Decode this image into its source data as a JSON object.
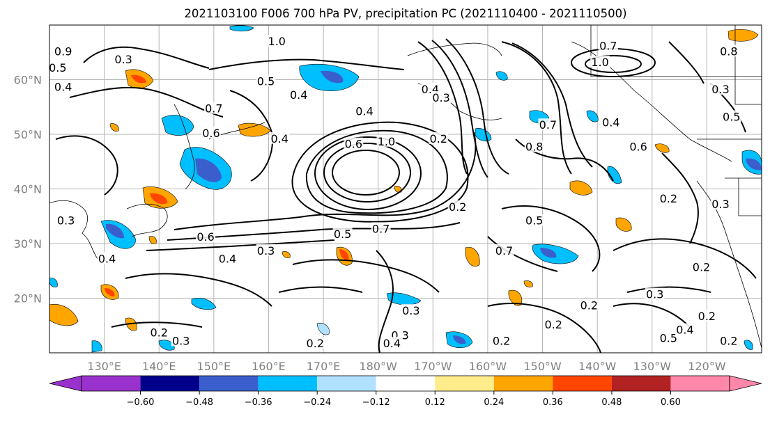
{
  "title": "2021103100 F006 700 hPa PV, precipitation PC (2021110400 - 2021110500)",
  "map": {
    "lat_ticks": [
      {
        "lat": 60,
        "label": "60°N"
      },
      {
        "lat": 50,
        "label": "50°N"
      },
      {
        "lat": 40,
        "label": "40°N"
      },
      {
        "lat": 30,
        "label": "30°N"
      },
      {
        "lat": 20,
        "label": "20°N"
      }
    ],
    "lon_ticks": [
      {
        "lon": 130,
        "label": "130°E"
      },
      {
        "lon": 140,
        "label": "140°E"
      },
      {
        "lon": 150,
        "label": "150°E"
      },
      {
        "lon": 160,
        "label": "160°E"
      },
      {
        "lon": 170,
        "label": "170°E"
      },
      {
        "lon": 180,
        "label": "180°W"
      },
      {
        "lon": 190,
        "label": "170°W"
      },
      {
        "lon": 200,
        "label": "160°W"
      },
      {
        "lon": 210,
        "label": "150°W"
      },
      {
        "lon": 220,
        "label": "140°W"
      },
      {
        "lon": 230,
        "label": "130°W"
      },
      {
        "lon": 240,
        "label": "120°W"
      }
    ],
    "lon_range": [
      120,
      250
    ],
    "lat_range": [
      10,
      70
    ],
    "grid": true,
    "tick_color": "#808080",
    "contour_labels": [
      {
        "text": "1.0",
        "lon": 161.5,
        "lat": 66.8
      },
      {
        "text": "0.3",
        "lon": 133.5,
        "lat": 63.5
      },
      {
        "text": "0.9",
        "lon": 122.5,
        "lat": 65.0
      },
      {
        "text": "0.5",
        "lon": 121.5,
        "lat": 62.0
      },
      {
        "text": "0.4",
        "lon": 122.5,
        "lat": 58.5
      },
      {
        "text": "0.7",
        "lon": 150.0,
        "lat": 54.5
      },
      {
        "text": "0.6",
        "lon": 149.5,
        "lat": 50.0
      },
      {
        "text": "0.5",
        "lon": 159.5,
        "lat": 59.5
      },
      {
        "text": "0.4",
        "lon": 165.5,
        "lat": 57.0
      },
      {
        "text": "0.4",
        "lon": 162.0,
        "lat": 49.0
      },
      {
        "text": "0.4",
        "lon": 177.5,
        "lat": 54.0
      },
      {
        "text": "1.0",
        "lon": 181.5,
        "lat": 48.5
      },
      {
        "text": "0.6",
        "lon": 175.5,
        "lat": 48.0
      },
      {
        "text": "0.7",
        "lon": 180.5,
        "lat": 32.5
      },
      {
        "text": "0.5",
        "lon": 173.5,
        "lat": 31.5
      },
      {
        "text": "0.3",
        "lon": 159.5,
        "lat": 28.5
      },
      {
        "text": "0.4",
        "lon": 152.5,
        "lat": 27.0
      },
      {
        "text": "0.6",
        "lon": 148.5,
        "lat": 31.0
      },
      {
        "text": "0.4",
        "lon": 130.5,
        "lat": 27.0
      },
      {
        "text": "0.3",
        "lon": 123.0,
        "lat": 34.0
      },
      {
        "text": "0.3",
        "lon": 186.0,
        "lat": 17.5
      },
      {
        "text": "0.3",
        "lon": 184.0,
        "lat": 13.0
      },
      {
        "text": "0.4",
        "lon": 182.5,
        "lat": 11.5
      },
      {
        "text": "0.2",
        "lon": 168.5,
        "lat": 11.5
      },
      {
        "text": "0.2",
        "lon": 140.0,
        "lat": 13.5
      },
      {
        "text": "0.3",
        "lon": 144.0,
        "lat": 12.0
      },
      {
        "text": "0.2",
        "lon": 194.5,
        "lat": 36.5
      },
      {
        "text": "0.7",
        "lon": 203.0,
        "lat": 28.5
      },
      {
        "text": "0.5",
        "lon": 208.5,
        "lat": 34.0
      },
      {
        "text": "0.8",
        "lon": 208.5,
        "lat": 47.5
      },
      {
        "text": "0.2",
        "lon": 191.0,
        "lat": 49.0
      },
      {
        "text": "0.4",
        "lon": 189.5,
        "lat": 58.0
      },
      {
        "text": "0.3",
        "lon": 191.5,
        "lat": 56.5
      },
      {
        "text": "0.7",
        "lon": 211.0,
        "lat": 51.5
      },
      {
        "text": "1.0",
        "lon": 220.5,
        "lat": 63.0
      },
      {
        "text": "0.7",
        "lon": 222.0,
        "lat": 66.0
      },
      {
        "text": "0.4",
        "lon": 222.5,
        "lat": 52.0
      },
      {
        "text": "0.6",
        "lon": 227.5,
        "lat": 47.5
      },
      {
        "text": "0.3",
        "lon": 242.5,
        "lat": 58.0
      },
      {
        "text": "0.5",
        "lon": 244.5,
        "lat": 53.0
      },
      {
        "text": "0.8",
        "lon": 244.0,
        "lat": 65.0
      },
      {
        "text": "0.2",
        "lon": 233.0,
        "lat": 38.0
      },
      {
        "text": "0.3",
        "lon": 242.5,
        "lat": 37.0
      },
      {
        "text": "0.2",
        "lon": 239.0,
        "lat": 25.5
      },
      {
        "text": "0.3",
        "lon": 230.5,
        "lat": 20.5
      },
      {
        "text": "0.2",
        "lon": 240.0,
        "lat": 16.5
      },
      {
        "text": "0.2",
        "lon": 212.0,
        "lat": 15.0
      },
      {
        "text": "0.2",
        "lon": 202.5,
        "lat": 12.0
      },
      {
        "text": "0.2",
        "lon": 244.0,
        "lat": 12.0
      },
      {
        "text": "0.5",
        "lon": 233.0,
        "lat": 12.5
      },
      {
        "text": "0.4",
        "lon": 236.0,
        "lat": 14.0
      },
      {
        "text": "0.2",
        "lon": 218.5,
        "lat": 18.5
      }
    ]
  },
  "colorbar": {
    "boundaries": [
      -0.6,
      -0.48,
      -0.36,
      -0.24,
      -0.12,
      0.12,
      0.24,
      0.36,
      0.48,
      0.6
    ],
    "tick_labels": [
      "−0.60",
      "−0.48",
      "−0.36",
      "−0.24",
      "−0.12",
      "0.12",
      "0.24",
      "0.36",
      "0.48",
      "0.60"
    ],
    "colors": [
      "#9932cc",
      "#00008b",
      "#3a5fcd",
      "#00bfff",
      "#b0e2ff",
      "#ffffff",
      "#ffec8b",
      "#ffa500",
      "#ff4500",
      "#b22222",
      "#ff88aa"
    ],
    "extend": "both"
  }
}
